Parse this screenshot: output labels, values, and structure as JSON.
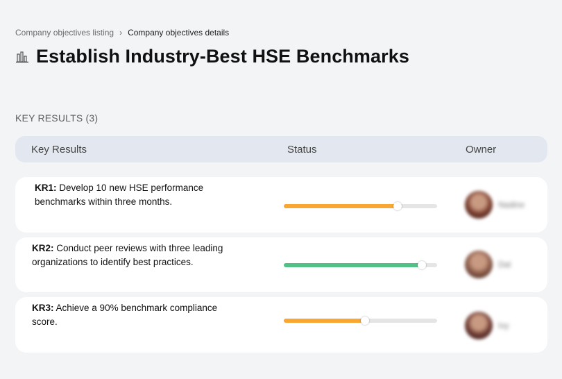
{
  "breadcrumb": {
    "parent": "Company objectives listing",
    "separator": "›",
    "current": "Company objectives details"
  },
  "header": {
    "icon": "building-chart-icon",
    "title": "Establish Industry-Best HSE Benchmarks"
  },
  "section": {
    "label": "KEY RESULTS (3)"
  },
  "table": {
    "columns": [
      "Key Results",
      "Status",
      "Owner"
    ],
    "rows": [
      {
        "code": "KR1:",
        "text": " Develop 10 new HSE performance benchmarks within three months.",
        "progress": 0.74,
        "status_color": "#f9a733",
        "owner": "Nadine",
        "avatar_color": "#7a3d2e"
      },
      {
        "code": "KR2:",
        "text": " Conduct peer reviews with three leading organizations to identify best practices.",
        "progress": 0.9,
        "status_color": "#52c185",
        "owner": "Dal",
        "avatar_color": "#8a5a48"
      },
      {
        "code": "KR3:",
        "text": " Achieve a 90% benchmark compliance score.",
        "progress": 0.53,
        "status_color": "#f9a733",
        "owner": "Ivy",
        "avatar_color": "#6e3b33"
      }
    ]
  }
}
